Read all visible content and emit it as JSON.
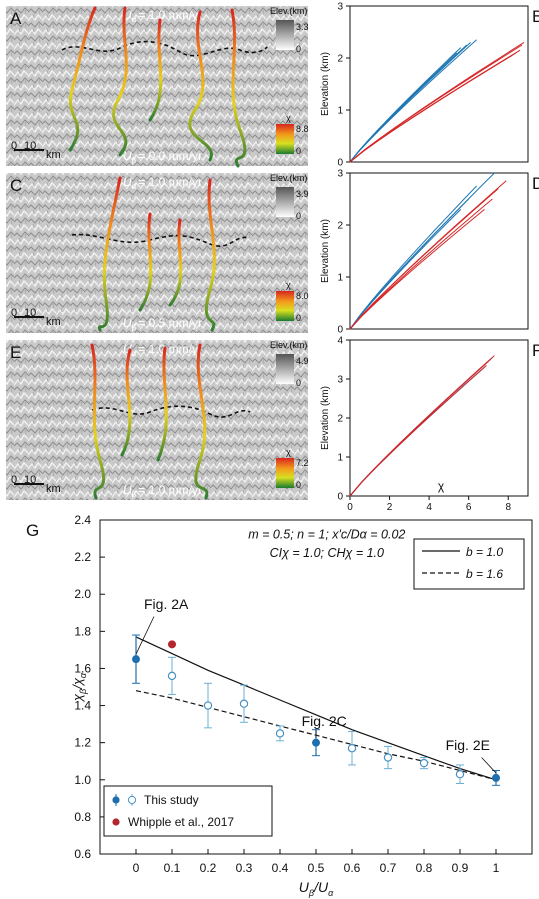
{
  "panels": {
    "A": {
      "label": "A",
      "u_top": "U",
      "u_top_sub": "α",
      "u_top_val": "= 1.0 mm/yr",
      "u_bot": "U",
      "u_bot_sub": "β",
      "u_bot_val": "= 0.0 mm/yr",
      "elev_title": "Elev.(km)",
      "elev_max": "3.3",
      "elev_min": "0",
      "chi_title": "χ",
      "chi_max": "8.8",
      "chi_min": "0",
      "scale_0": "0",
      "scale_10": "10",
      "scale_unit": "km"
    },
    "C": {
      "label": "C",
      "u_top": "U",
      "u_top_sub": "α",
      "u_top_val": "= 1.0 mm/yr",
      "u_bot": "U",
      "u_bot_sub": "β",
      "u_bot_val": "= 0.5 mm/yr",
      "elev_title": "Elev.(km)",
      "elev_max": "3.9",
      "elev_min": "0",
      "chi_title": "χ",
      "chi_max": "8.0",
      "chi_min": "0",
      "scale_0": "0",
      "scale_10": "10",
      "scale_unit": "km"
    },
    "E": {
      "label": "E",
      "u_top": "U",
      "u_top_sub": "α",
      "u_top_val": "= 1.0 mm/yr",
      "u_bot": "U",
      "u_bot_sub": "β",
      "u_bot_val": "= 1.0 mm/yr",
      "elev_title": "Elev.(km)",
      "elev_max": "4.9",
      "elev_min": "0",
      "chi_title": "χ",
      "chi_max": "7.2",
      "chi_min": "0",
      "scale_0": "0",
      "scale_10": "10",
      "scale_unit": "km"
    }
  },
  "colors": {
    "blue": "#1f77b4",
    "red": "#d62728",
    "green": "#2e7d32",
    "gmark": "#1f6fae",
    "whipple": "#b5262e"
  },
  "chart_data": [
    {
      "id": "B",
      "label": "B",
      "type": "line",
      "ylabel": "Elevation (km)",
      "ylim": [
        0,
        3
      ],
      "xlim": [
        0,
        9
      ],
      "yticks": [
        "0",
        "1",
        "2",
        "3"
      ],
      "series": [
        {
          "color": "blue",
          "end_x": [
            5.4,
            5.6,
            5.9,
            6.1,
            6.4
          ],
          "end_y": [
            2.1,
            2.2,
            2.25,
            2.3,
            2.35
          ]
        },
        {
          "color": "red",
          "end_x": [
            8.2,
            8.4,
            8.6,
            8.7,
            8.8
          ],
          "end_y": [
            2.05,
            2.1,
            2.15,
            2.25,
            2.3
          ]
        }
      ]
    },
    {
      "id": "D",
      "label": "D",
      "type": "line",
      "ylabel": "Elevation (km)",
      "ylim": [
        0,
        3
      ],
      "xlim": [
        0,
        9
      ],
      "yticks": [
        "0",
        "1",
        "2",
        "3"
      ],
      "series": [
        {
          "color": "blue",
          "end_x": [
            5.6,
            6.0,
            6.4,
            7.3
          ],
          "end_y": [
            2.3,
            2.5,
            2.75,
            3.0
          ]
        },
        {
          "color": "red",
          "end_x": [
            6.8,
            7.2,
            7.5,
            7.9
          ],
          "end_y": [
            2.3,
            2.5,
            2.7,
            2.85
          ]
        }
      ]
    },
    {
      "id": "F",
      "label": "F",
      "type": "line",
      "ylabel": "Elevation (km)",
      "xlabel": "χ",
      "ylim": [
        0,
        4
      ],
      "xlim": [
        0,
        9
      ],
      "yticks": [
        "0",
        "1",
        "2",
        "3",
        "4"
      ],
      "xticks": [
        "0",
        "2",
        "4",
        "6",
        "8"
      ],
      "series": [
        {
          "color": "blue",
          "end_x": [
            6.8,
            7.0,
            7.2
          ],
          "end_y": [
            3.3,
            3.45,
            3.55
          ]
        },
        {
          "color": "red",
          "end_x": [
            6.9,
            7.1,
            7.3
          ],
          "end_y": [
            3.35,
            3.5,
            3.6
          ]
        }
      ]
    },
    {
      "id": "G",
      "label": "G",
      "type": "scatter",
      "xlabel": "U",
      "xlabel_sub": "β",
      "xlabel_rest": "/U",
      "xlabel_sub2": "α",
      "ylabel": "χ",
      "ylabel_sub": "β",
      "ylabel_rest": "/χ",
      "ylabel_sub2": "α",
      "xlim": [
        -0.1,
        1.1
      ],
      "ylim": [
        0.6,
        2.4
      ],
      "xticks": [
        "0",
        "0.1",
        "0.2",
        "0.3",
        "0.4",
        "0.5",
        "0.6",
        "0.7",
        "0.8",
        "0.9",
        "1"
      ],
      "yticks": [
        "0.6",
        "0.8",
        "1.0",
        "1.2",
        "1.4",
        "1.6",
        "1.8",
        "2.0",
        "2.2",
        "2.4"
      ],
      "params_line1": "m = 0.5; n = 1; x'c/Dα = 0.02",
      "params_line2": "CIχ = 1.0; CHχ = 1.0",
      "legend_top": [
        {
          "name": "b = 1.0",
          "style": "solid"
        },
        {
          "name": "b = 1.6",
          "style": "dashed"
        }
      ],
      "legend_bottom": [
        {
          "name": "This study"
        },
        {
          "name": "Whipple et al., 2017"
        }
      ],
      "filled": [
        {
          "x": 0,
          "y": 1.65,
          "err": 0.13
        },
        {
          "x": 0.5,
          "y": 1.2,
          "err": 0.07
        },
        {
          "x": 1.0,
          "y": 1.01,
          "err": 0.04
        }
      ],
      "open": [
        {
          "x": 0.1,
          "y": 1.56,
          "err": 0.1
        },
        {
          "x": 0.2,
          "y": 1.4,
          "err": 0.12
        },
        {
          "x": 0.3,
          "y": 1.41,
          "err": 0.1
        },
        {
          "x": 0.4,
          "y": 1.25,
          "err": 0.04
        },
        {
          "x": 0.6,
          "y": 1.17,
          "err": 0.09
        },
        {
          "x": 0.7,
          "y": 1.12,
          "err": 0.06
        },
        {
          "x": 0.8,
          "y": 1.09,
          "err": 0.03
        },
        {
          "x": 0.9,
          "y": 1.03,
          "err": 0.05
        }
      ],
      "whipple": [
        {
          "x": 0.1,
          "y": 1.73
        }
      ],
      "curve_solid": [
        [
          0,
          1.77
        ],
        [
          0.1,
          1.68
        ],
        [
          0.2,
          1.59
        ],
        [
          0.3,
          1.51
        ],
        [
          0.4,
          1.43
        ],
        [
          0.5,
          1.35
        ],
        [
          0.6,
          1.27
        ],
        [
          0.7,
          1.2
        ],
        [
          0.8,
          1.13
        ],
        [
          0.9,
          1.06
        ],
        [
          1.0,
          1.0
        ]
      ],
      "curve_dashed": [
        [
          0,
          1.48
        ],
        [
          0.1,
          1.44
        ],
        [
          0.2,
          1.39
        ],
        [
          0.3,
          1.34
        ],
        [
          0.4,
          1.29
        ],
        [
          0.5,
          1.24
        ],
        [
          0.6,
          1.19
        ],
        [
          0.7,
          1.14
        ],
        [
          0.8,
          1.1
        ],
        [
          0.9,
          1.05
        ],
        [
          1.0,
          1.0
        ]
      ],
      "annotations": [
        {
          "text": "Fig. 2A",
          "x": 0.0,
          "y": 1.65
        },
        {
          "text": "Fig. 2C",
          "x": 0.5,
          "y": 1.2
        },
        {
          "text": "Fig. 2E",
          "x": 1.0,
          "y": 1.01
        }
      ]
    }
  ]
}
